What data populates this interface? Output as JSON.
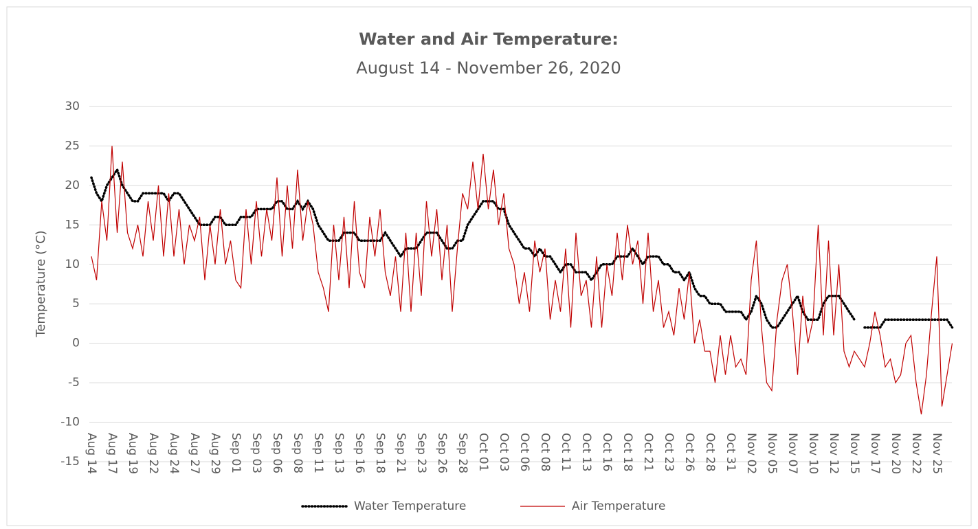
{
  "chart_data": {
    "type": "line",
    "title": "Water and Air Temperature:",
    "subtitle": "August 14 - November 26, 2020",
    "y_label": "Temperature (°C)",
    "categories": [
      "Aug 14",
      null,
      null,
      null,
      "Aug 17",
      null,
      null,
      null,
      "Aug 19",
      null,
      null,
      null,
      "Aug 22",
      null,
      null,
      null,
      "Aug 24",
      null,
      null,
      null,
      "Aug 27",
      null,
      null,
      null,
      "Aug 29",
      null,
      null,
      null,
      "Sep 01",
      null,
      null,
      null,
      "Sep 03",
      null,
      null,
      null,
      "Sep 06",
      null,
      null,
      null,
      "Sep 08",
      null,
      null,
      null,
      "Sep 11",
      null,
      null,
      null,
      "Sep 13",
      null,
      null,
      null,
      "Sep 16",
      null,
      null,
      null,
      "Sep 18",
      null,
      null,
      null,
      "Sep 21",
      null,
      null,
      null,
      "Sep 23",
      null,
      null,
      null,
      "Sep 26",
      null,
      null,
      null,
      "Sep 28",
      null,
      null,
      null,
      "Oct 01",
      null,
      null,
      null,
      "Oct 03",
      null,
      null,
      null,
      "Oct 06",
      null,
      null,
      null,
      "Oct 08",
      null,
      null,
      null,
      "Oct 11",
      null,
      null,
      null,
      "Oct 13",
      null,
      null,
      null,
      "Oct 16",
      null,
      null,
      null,
      "Oct 18",
      null,
      null,
      null,
      "Oct 21",
      null,
      null,
      null,
      "Oct 23",
      null,
      null,
      null,
      "Oct 26",
      null,
      null,
      null,
      "Oct 28",
      null,
      null,
      null,
      "Oct 31",
      null,
      null,
      null,
      "Nov 02",
      null,
      null,
      null,
      "Nov 05",
      null,
      null,
      null,
      "Nov 07",
      null,
      null,
      null,
      "Nov 10",
      null,
      null,
      null,
      "Nov 12",
      null,
      null,
      null,
      "Nov 15",
      null,
      null,
      null,
      "Nov 17",
      null,
      null,
      null,
      "Nov 20",
      null,
      null,
      null,
      "Nov 22",
      null,
      null,
      null,
      "Nov 25",
      null,
      null,
      null
    ],
    "series": [
      {
        "name": "Water Temperature",
        "color": "#000000",
        "style": "dotted",
        "values": [
          21,
          19,
          18,
          20,
          21,
          22,
          20,
          19,
          18,
          18,
          19,
          19,
          19,
          19,
          19,
          18,
          19,
          19,
          18,
          17,
          16,
          15,
          15,
          15,
          16,
          16,
          15,
          15,
          15,
          16,
          16,
          16,
          17,
          17,
          17,
          17,
          18,
          18,
          17,
          17,
          18,
          17,
          18,
          17,
          15,
          14,
          13,
          13,
          13,
          14,
          14,
          14,
          13,
          13,
          13,
          13,
          13,
          14,
          13,
          12,
          11,
          12,
          12,
          12,
          13,
          14,
          14,
          14,
          13,
          12,
          12,
          13,
          13,
          15,
          16,
          17,
          18,
          18,
          18,
          17,
          17,
          15,
          14,
          13,
          12,
          12,
          11,
          12,
          11,
          11,
          10,
          9,
          10,
          10,
          9,
          9,
          9,
          8,
          9,
          10,
          10,
          10,
          11,
          11,
          11,
          12,
          11,
          10,
          11,
          11,
          11,
          10,
          10,
          9,
          9,
          8,
          9,
          7,
          6,
          6,
          5,
          5,
          5,
          4,
          4,
          4,
          4,
          3,
          4,
          6,
          5,
          3,
          2,
          2,
          3,
          4,
          5,
          6,
          4,
          3,
          3,
          3,
          5,
          6,
          6,
          6,
          5,
          4,
          3,
          null,
          2,
          2,
          2,
          2,
          3,
          3,
          3,
          3,
          3,
          3,
          3,
          3,
          3,
          3,
          3,
          3,
          3,
          2
        ]
      },
      {
        "name": "Air Temperature",
        "color": "#c00000",
        "style": "solid",
        "values": [
          11,
          8,
          18,
          13,
          25,
          14,
          23,
          14,
          12,
          15,
          11,
          18,
          13,
          20,
          11,
          19,
          11,
          17,
          10,
          15,
          13,
          16,
          8,
          15,
          10,
          17,
          10,
          13,
          8,
          7,
          17,
          10,
          18,
          11,
          17,
          13,
          21,
          11,
          20,
          12,
          22,
          13,
          18,
          15,
          9,
          7,
          4,
          15,
          8,
          16,
          7,
          18,
          9,
          7,
          16,
          11,
          17,
          9,
          6,
          11,
          4,
          14,
          4,
          14,
          6,
          18,
          11,
          17,
          8,
          15,
          4,
          12,
          19,
          17,
          23,
          17,
          24,
          17,
          22,
          15,
          19,
          12,
          10,
          5,
          9,
          4,
          13,
          9,
          12,
          3,
          8,
          4,
          12,
          2,
          14,
          6,
          8,
          2,
          11,
          2,
          10,
          6,
          14,
          8,
          15,
          10,
          13,
          5,
          14,
          4,
          8,
          2,
          4,
          1,
          7,
          3,
          9,
          0,
          3,
          -1,
          -1,
          -5,
          1,
          -4,
          1,
          -3,
          -2,
          -4,
          8,
          13,
          2,
          -5,
          -6,
          3,
          8,
          10,
          4,
          -4,
          6,
          0,
          3,
          15,
          1,
          13,
          1,
          10,
          -1,
          -3,
          -1,
          -2,
          -3,
          0,
          4,
          1,
          -3,
          -2,
          -5,
          -4,
          0,
          1,
          -5,
          -9,
          -4,
          4,
          11,
          -8,
          -4,
          0
        ]
      }
    ],
    "ylim": [
      -15,
      30
    ],
    "yticks": [
      -15,
      -10,
      -5,
      0,
      5,
      10,
      15,
      20,
      25,
      30
    ],
    "grid": true,
    "legend": "bottom"
  }
}
